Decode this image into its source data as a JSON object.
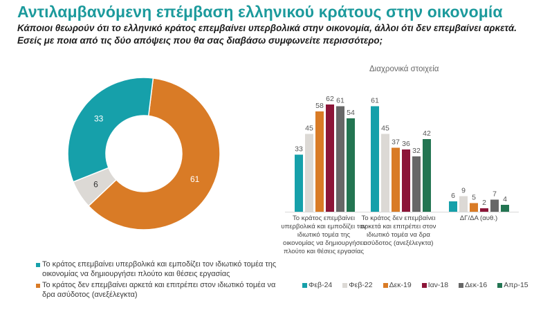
{
  "header": {
    "title": "Αντιλαμβανόμενη επέμβαση ελληνικού κράτους στην οικονομία",
    "subtitle_line1": "Κάποιοι θεωρούν ότι το ελληνικό κράτος επεμβαίνει υπερβολικά στην οικονομία, άλλοι ότι δεν επεμβαίνει αρκετά.",
    "subtitle_line2": "Εσείς με ποια από τις δύο απόψεις που θα σας διαβάσω συμφωνείτε περισσότερο;"
  },
  "chart_data": [
    {
      "type": "pie",
      "variant": "donut",
      "title": "",
      "slices": [
        {
          "label": "Το κράτος δεν επεμβαίνει αρκετά και επιτρέπει στον ιδιωτικό τομέα να δρα ασύδοτος (ανεξέλεγκτα)",
          "value": 61,
          "color": "#d97b26"
        },
        {
          "label": "ΔΓ/ΔΑ (αυθ.)",
          "value": 6,
          "color": "#dcd9d5"
        },
        {
          "label": "Το κράτος επεμβαίνει υπερβολικά και εμποδίζει τον ιδιωτικό τομέα της οικονομίας να δημιουργήσει πλούτο και θέσεις εργασίας",
          "value": 33,
          "color": "#16a0aa"
        }
      ],
      "legend": [
        {
          "label": "Το κράτος επεμβαίνει υπερβολικά και εμποδίζει τον ιδιωτικό τομέα της οικονομίας να δημιουργήσει πλούτο και θέσεις εργασίας",
          "color": "#16a0aa"
        },
        {
          "label": "Το κράτος δεν επεμβαίνει αρκετά και επιτρέπει στον ιδιωτικό τομέα να δρα ασύδοτος (ανεξέλεγκτα)",
          "color": "#d97b26"
        }
      ],
      "legend_position": "bottom-left"
    },
    {
      "type": "bar",
      "title": "Διαχρονικά στοιχεία",
      "categories": [
        "Το κράτος επεμβαίνει υπερβολικά και εμποδίζει τον ιδιωτικό τομέα της οικονομίας να δημιουργήσει πλούτο και θέσεις εργασίας",
        "Το κράτος δεν επεμβαίνει αρκετά και επιτρέπει στον ιδιωτικό τομέα να δρα ασύδοτος (ανεξέλεγκτα)",
        "ΔΓ/ΔΑ (αυθ.)"
      ],
      "series": [
        {
          "name": "Φεβ-24",
          "values": [
            33,
            61,
            6
          ],
          "color": "#16a0aa"
        },
        {
          "name": "Φεβ-22",
          "values": [
            45,
            45,
            9
          ],
          "color": "#dcd9d5"
        },
        {
          "name": "Δεκ-19",
          "values": [
            58,
            37,
            5
          ],
          "color": "#d97b26"
        },
        {
          "name": "Ιαν-18",
          "values": [
            62,
            36,
            2
          ],
          "color": "#8c1538"
        },
        {
          "name": "Δεκ-16",
          "values": [
            61,
            32,
            7
          ],
          "color": "#676767"
        },
        {
          "name": "Απρ-15",
          "values": [
            54,
            42,
            4
          ],
          "color": "#237552"
        }
      ],
      "xlabel": "",
      "ylabel": "",
      "ylim": [
        0,
        65
      ],
      "grid": false,
      "data_labels": true,
      "legend_position": "bottom"
    }
  ]
}
